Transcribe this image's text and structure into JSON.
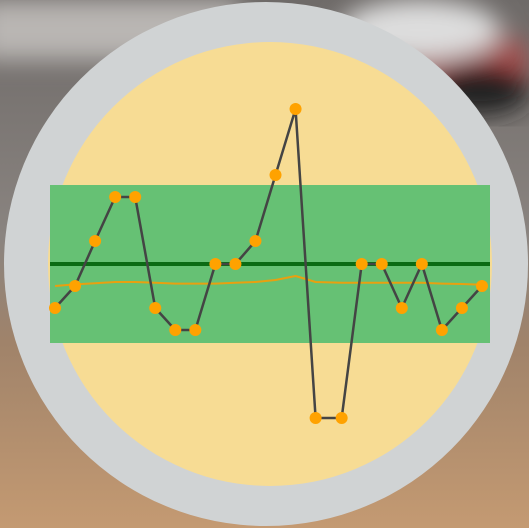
{
  "chart_data": {
    "type": "line",
    "x": [
      0,
      1,
      2,
      3,
      4,
      5,
      6,
      7,
      8,
      9,
      10,
      11,
      12,
      13,
      14.3,
      15.3,
      16.3,
      17.3,
      18.3,
      19.3,
      20.3,
      21.3
    ],
    "xlim": [
      -0.25,
      21.7
    ],
    "ylim": [
      0,
      100
    ],
    "series": [
      {
        "color": "#444444",
        "marker_color": "#ffa200",
        "values": [
          35.5,
          41,
          52.25,
          63.25,
          63.25,
          35.5,
          30,
          30,
          46.5,
          46.5,
          52.25,
          68.75,
          85.25,
          8,
          8,
          46.5,
          46.5,
          35.5,
          46.5,
          30,
          35.5,
          41
        ]
      },
      {
        "color": "#e8a010",
        "values": [
          41,
          41.4,
          41.7,
          42,
          42,
          41.8,
          41.6,
          41.6,
          41.6,
          41.8,
          42,
          42.5,
          43.5,
          42,
          41.8,
          41.8,
          41.8,
          41.8,
          41.8,
          41.6,
          41.5,
          41.3
        ]
      }
    ],
    "band": {
      "lower": 26.75,
      "upper": 66.25,
      "color": "#66c174"
    },
    "center_line": {
      "value": 46.5,
      "color": "#0b6b14"
    }
  }
}
